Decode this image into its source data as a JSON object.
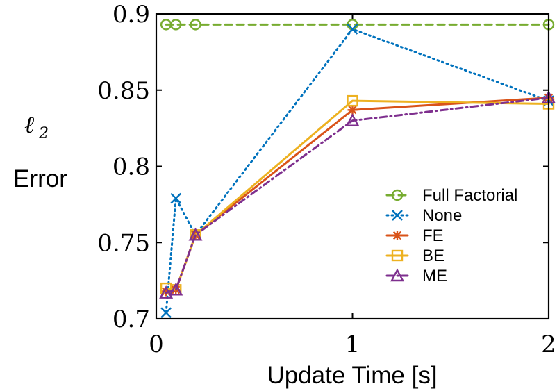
{
  "chart_data": {
    "type": "line",
    "xlabel": "Update Time [s]",
    "ylabel_symbol": "ℓ",
    "ylabel_subscript": "2",
    "ylabel_text": "Error",
    "xlim": [
      0,
      2
    ],
    "ylim": [
      0.7,
      0.9
    ],
    "xticks": [
      0,
      1,
      2
    ],
    "xtick_labels": [
      "0",
      "1",
      "2"
    ],
    "yticks": [
      0.7,
      0.75,
      0.8,
      0.85,
      0.9
    ],
    "ytick_labels": [
      "0.7",
      "0.75",
      "0.8",
      "0.85",
      "0.9"
    ],
    "grid": false,
    "legend_position": "center-right",
    "series": [
      {
        "name": "Full Factorial",
        "color": "#77AC30",
        "line_style": "dashed",
        "marker": "circle",
        "x": [
          0.05,
          0.1,
          0.2,
          1,
          2
        ],
        "y": [
          0.893,
          0.893,
          0.893,
          0.893,
          0.893
        ]
      },
      {
        "name": "None",
        "color": "#0072BD",
        "line_style": "dotted",
        "marker": "x",
        "x": [
          0.05,
          0.1,
          0.2,
          1,
          2
        ],
        "y": [
          0.704,
          0.779,
          0.755,
          0.89,
          0.843
        ]
      },
      {
        "name": "FE",
        "color": "#D95319",
        "line_style": "solid",
        "marker": "asterisk",
        "x": [
          0.05,
          0.1,
          0.2,
          1,
          2
        ],
        "y": [
          0.718,
          0.719,
          0.755,
          0.837,
          0.845
        ]
      },
      {
        "name": "BE",
        "color": "#EDB120",
        "line_style": "solid",
        "marker": "square",
        "x": [
          0.05,
          0.1,
          0.2,
          1,
          2
        ],
        "y": [
          0.72,
          0.719,
          0.755,
          0.843,
          0.841
        ]
      },
      {
        "name": "ME",
        "color": "#7E2F8E",
        "line_style": "dashdot",
        "marker": "triangle",
        "x": [
          0.05,
          0.1,
          0.2,
          1,
          2
        ],
        "y": [
          0.717,
          0.719,
          0.755,
          0.83,
          0.845
        ]
      }
    ]
  }
}
